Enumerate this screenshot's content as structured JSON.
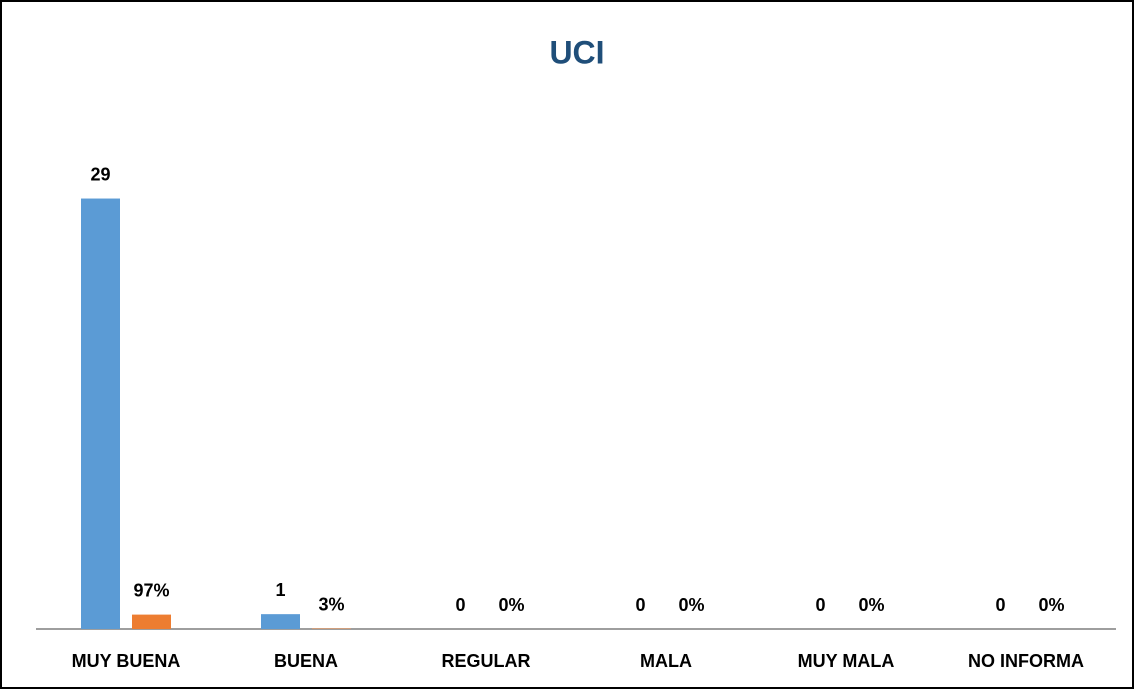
{
  "chart_data": {
    "type": "bar",
    "title": "UCI",
    "categories": [
      "MUY BUENA",
      "BUENA",
      "REGULAR",
      "MALA",
      "MUY MALA",
      "NO INFORMA"
    ],
    "series": [
      {
        "color": "#5b9bd5",
        "values": [
          29,
          1,
          0,
          0,
          0,
          0
        ]
      },
      {
        "color": "#ed7d31",
        "axis": "y2",
        "values": [
          97,
          3,
          0,
          0,
          0,
          0
        ],
        "value_labels": [
          "97%",
          "3%",
          "0%",
          "0%",
          "0%",
          "0%"
        ]
      }
    ],
    "ylim": [
      0,
      32
    ],
    "y2lim": [
      0,
      3200
    ]
  }
}
